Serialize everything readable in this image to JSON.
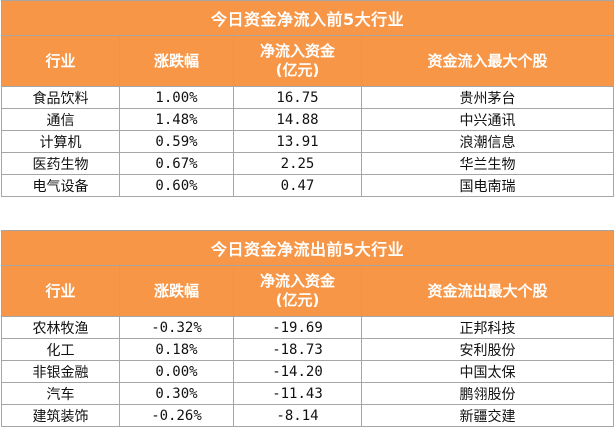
{
  "inflow": {
    "title": "今日资金净流入前5大行业",
    "headers": [
      "行业",
      "涨跌幅",
      "净流入资金",
      "(亿元)",
      "资金流入最大个股"
    ],
    "rows": [
      {
        "industry": "食品饮料",
        "change": "1.00%",
        "amount": "16.75",
        "stock": "贵州茅台"
      },
      {
        "industry": "通信",
        "change": "1.48%",
        "amount": "14.88",
        "stock": "中兴通讯"
      },
      {
        "industry": "计算机",
        "change": "0.59%",
        "amount": "13.91",
        "stock": "浪潮信息"
      },
      {
        "industry": "医药生物",
        "change": "0.67%",
        "amount": "2.25",
        "stock": "华兰生物"
      },
      {
        "industry": "电气设备",
        "change": "0.60%",
        "amount": "0.47",
        "stock": "国电南瑞"
      }
    ]
  },
  "outflow": {
    "title": "今日资金净流出前5大行业",
    "headers": [
      "行业",
      "涨跌幅",
      "净流入资金",
      "(亿元)",
      "资金流出最大个股"
    ],
    "rows": [
      {
        "industry": "农林牧渔",
        "change": "-0.32%",
        "amount": "-19.69",
        "stock": "正邦科技"
      },
      {
        "industry": "化工",
        "change": "0.18%",
        "amount": "-18.73",
        "stock": "安利股份"
      },
      {
        "industry": "非银金融",
        "change": "0.00%",
        "amount": "-14.20",
        "stock": "中国太保"
      },
      {
        "industry": "汽车",
        "change": "0.30%",
        "amount": "-11.43",
        "stock": "鹏翎股份"
      },
      {
        "industry": "建筑装饰",
        "change": "-0.26%",
        "amount": "-8.14",
        "stock": "新疆交建"
      }
    ]
  }
}
